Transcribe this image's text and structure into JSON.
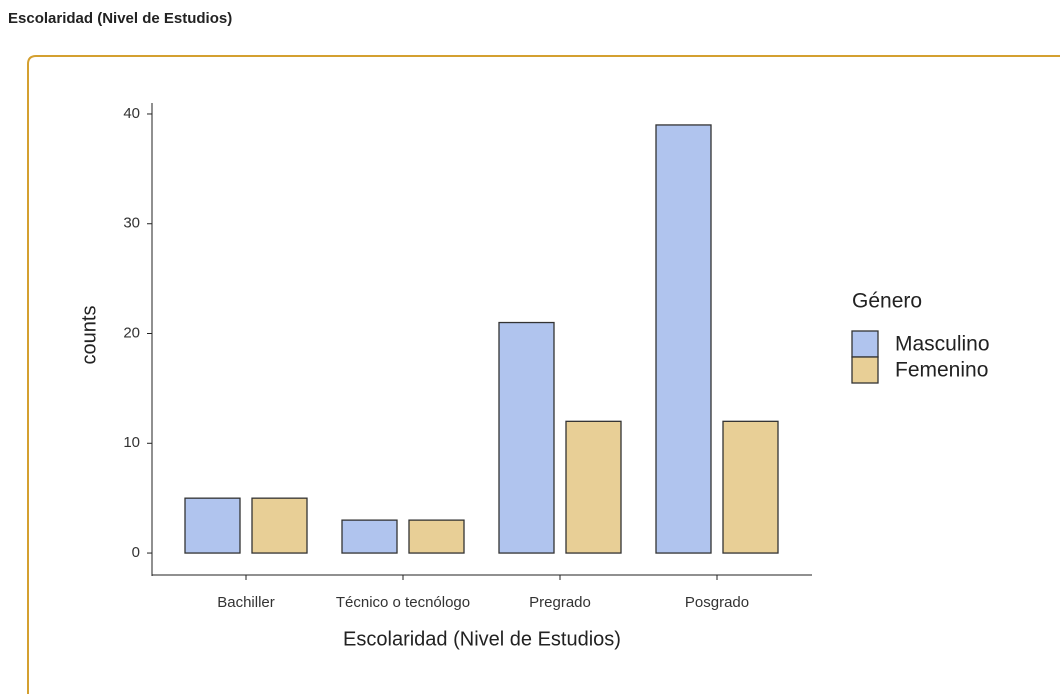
{
  "header": {
    "title": "Escolaridad (Nivel de Estudios)"
  },
  "chart_data": {
    "type": "bar",
    "x_label": "Escolaridad (Nivel de Estudios)",
    "y_label": "counts",
    "categories": [
      "Bachiller",
      "Técnico o tecnólogo",
      "Pregrado",
      "Posgrado"
    ],
    "series": [
      {
        "name": "Masculino",
        "color": "#b0c4ee",
        "values": [
          5,
          3,
          21,
          39
        ]
      },
      {
        "name": "Femenino",
        "color": "#e8cf96",
        "values": [
          5,
          3,
          12,
          12
        ]
      }
    ],
    "ylim": [
      -2,
      41
    ],
    "yticks": [
      0,
      10,
      20,
      30,
      40
    ],
    "legend_title": "Género",
    "legend": "right",
    "grid": false
  }
}
